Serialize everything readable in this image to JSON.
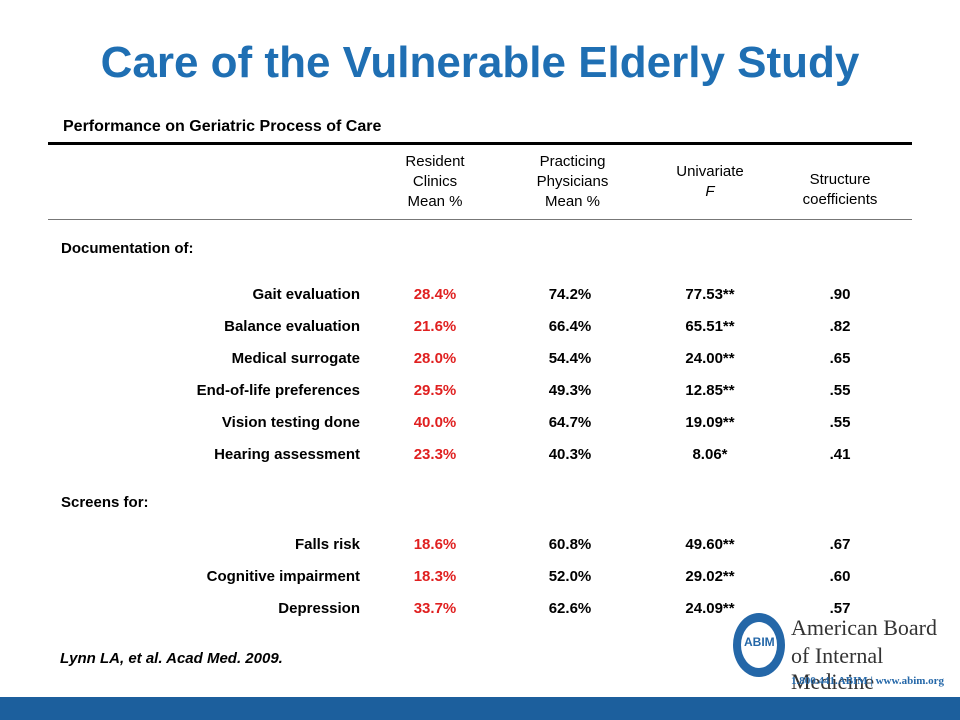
{
  "title": "Care of the Vulnerable Elderly Study",
  "subtitle": "Performance on Geriatric Process of Care",
  "columns": [
    {
      "lines": [
        "Resident",
        "Clinics",
        "Mean %"
      ]
    },
    {
      "lines": [
        "Practicing",
        "Physicians",
        "Mean %"
      ]
    },
    {
      "lines": [
        "Univariate",
        "F"
      ]
    },
    {
      "lines": [
        "Structure",
        "coefficients"
      ]
    }
  ],
  "sections": [
    {
      "heading": "Documentation of:",
      "rows": [
        {
          "label": "Gait evaluation",
          "resident": "28.4%",
          "practicing": "74.2%",
          "f": "77.53**",
          "coef": ".90"
        },
        {
          "label": "Balance evaluation",
          "resident": "21.6%",
          "practicing": "66.4%",
          "f": "65.51**",
          "coef": ".82"
        },
        {
          "label": "Medical surrogate",
          "resident": "28.0%",
          "practicing": "54.4%",
          "f": "24.00**",
          "coef": ".65"
        },
        {
          "label": "End-of-life preferences",
          "resident": "29.5%",
          "practicing": "49.3%",
          "f": "12.85**",
          "coef": ".55"
        },
        {
          "label": "Vision testing done",
          "resident": "40.0%",
          "practicing": "64.7%",
          "f": "19.09**",
          "coef": ".55"
        },
        {
          "label": "Hearing assessment",
          "resident": "23.3%",
          "practicing": "40.3%",
          "f": "8.06*",
          "coef": ".41"
        }
      ]
    },
    {
      "heading": "Screens for:",
      "rows": [
        {
          "label": "Falls risk",
          "resident": "18.6%",
          "practicing": "60.8%",
          "f": "49.60**",
          "coef": ".67"
        },
        {
          "label": "Cognitive impairment",
          "resident": "18.3%",
          "practicing": "52.0%",
          "f": "29.02**",
          "coef": ".60"
        },
        {
          "label": "Depression",
          "resident": "33.7%",
          "practicing": "62.6%",
          "f": "24.09**",
          "coef": ".57"
        }
      ]
    }
  ],
  "citation": "Lynn LA, et al. Acad Med. 2009.",
  "logo": {
    "seal_text": "ABIM",
    "line1": "American Board",
    "line2": "of Internal Medicine",
    "contact": "1.800.441.ABIM  |  www.abim.org"
  },
  "colors": {
    "title": "#1f6fb3",
    "resident_values": "#e02020",
    "footer_bar": "#1c5f9d"
  }
}
